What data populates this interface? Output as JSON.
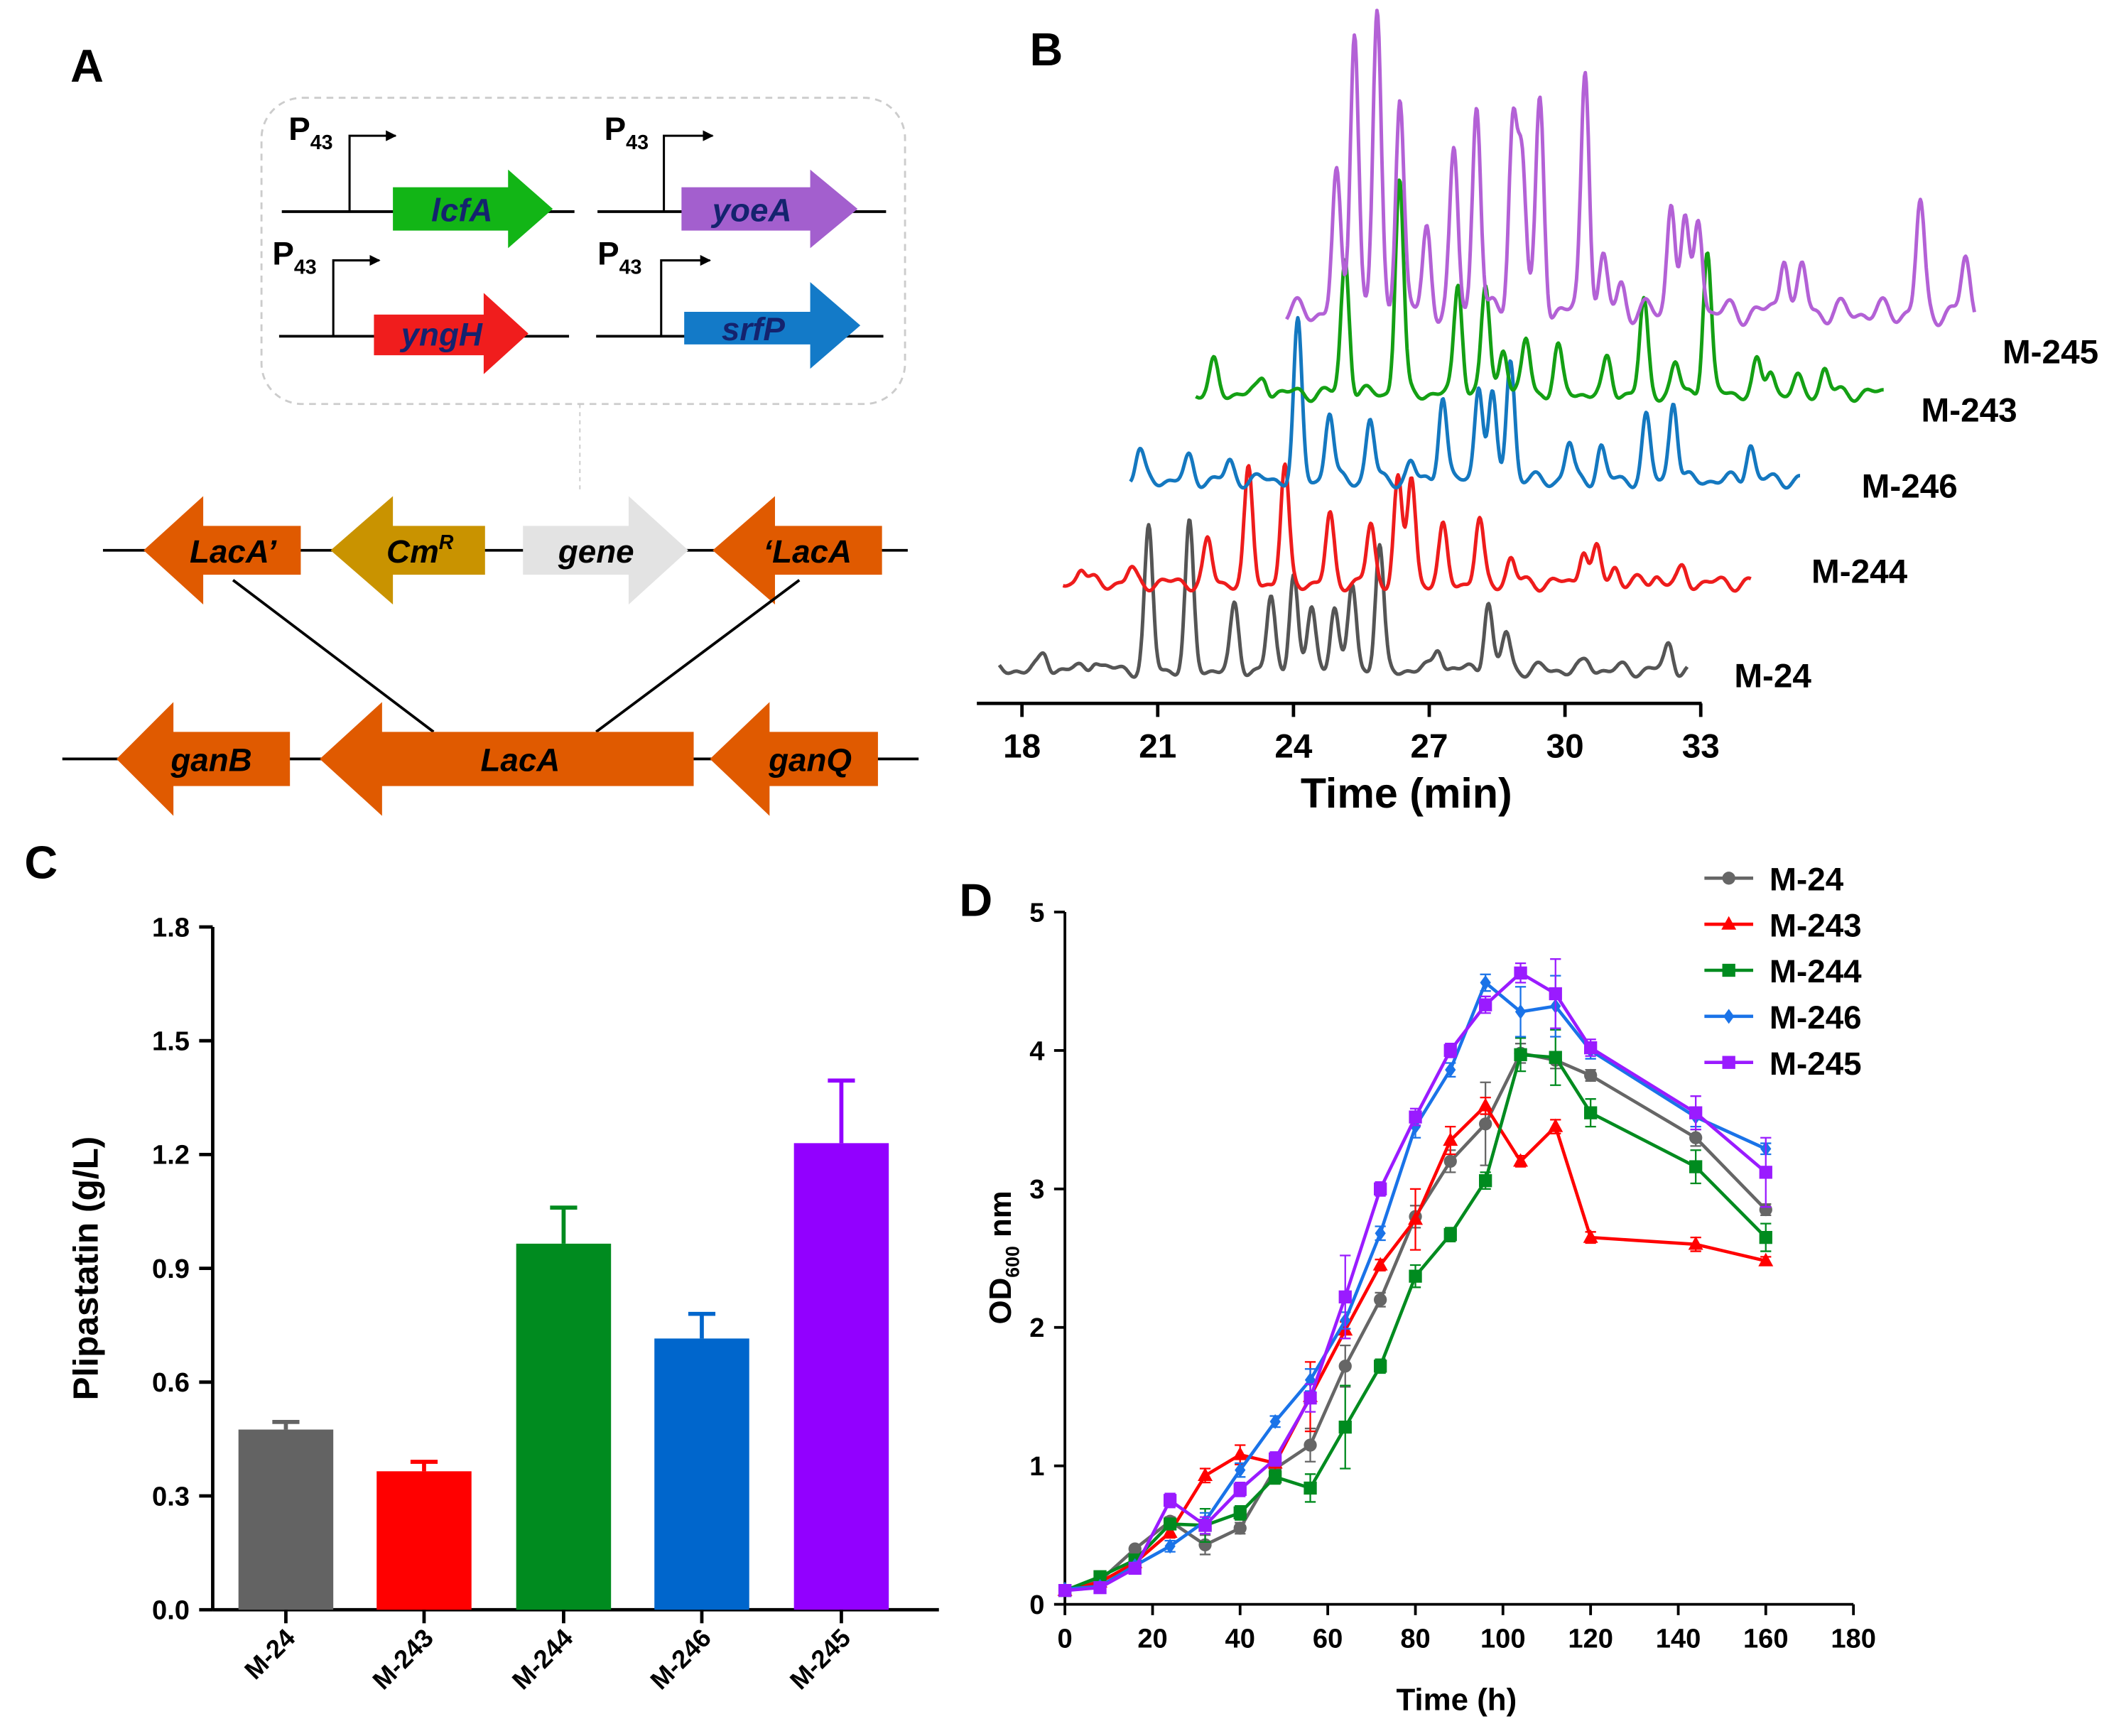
{
  "figure": {
    "panel_labels": {
      "a": "A",
      "b": "B",
      "c": "C",
      "d": "D"
    }
  },
  "panel_a": {
    "promoter": {
      "base": "P",
      "sub": "43"
    },
    "expression_genes": [
      {
        "name": "lcfA",
        "color": "#12b516"
      },
      {
        "name": "yoeA",
        "color": "#a35fce"
      },
      {
        "name": "yngH",
        "color": "#f01d1d"
      },
      {
        "name": "srfP",
        "color": "#137ac8"
      }
    ],
    "cassette": {
      "lacA_left": "LacA’",
      "cm_base": "Cm",
      "cm_sup": "R",
      "gene": "gene",
      "lacA_right": "‘LacA"
    },
    "genome": {
      "ganB": "ganB",
      "lacA": "LacA",
      "ganQ": "ganQ"
    },
    "colors": {
      "orange": "#e05a00",
      "gold": "#c99300",
      "grey": "#e3e3e3",
      "gene_text": "#14236e"
    }
  },
  "chart_data": [
    {
      "id": "chromatogram",
      "type": "line",
      "xlabel": "Time (min)",
      "xlim": [
        17.5,
        33
      ],
      "xticks": [
        18,
        21,
        24,
        27,
        30,
        33
      ],
      "series": [
        {
          "name": "M-24",
          "color": "#555555",
          "x_start": 17.5,
          "x_end": 32.7,
          "peaks": [
            [
              18.5,
              0.4
            ],
            [
              19.6,
              0.3
            ],
            [
              20.8,
              3.4
            ],
            [
              21.7,
              3.5
            ],
            [
              22.7,
              1.5
            ],
            [
              23.5,
              1.7
            ],
            [
              24.0,
              2.4
            ],
            [
              24.4,
              1.5
            ],
            [
              24.9,
              1.6
            ],
            [
              25.3,
              2.1
            ],
            [
              25.9,
              3.0
            ],
            [
              27.2,
              0.6
            ],
            [
              28.3,
              1.7
            ],
            [
              28.7,
              0.9
            ],
            [
              30.5,
              0.2
            ],
            [
              32.3,
              0.6
            ]
          ]
        },
        {
          "name": "M-244",
          "color": "#ee1c1c",
          "x_start": 17.5,
          "x_end": 32.7,
          "peaks": [
            [
              17.9,
              0.4
            ],
            [
              19.0,
              0.3
            ],
            [
              20.7,
              1.0
            ],
            [
              21.6,
              2.7
            ],
            [
              22.4,
              2.8
            ],
            [
              23.4,
              1.6
            ],
            [
              24.3,
              1.4
            ],
            [
              24.9,
              2.5
            ],
            [
              25.2,
              2.6
            ],
            [
              25.9,
              1.3
            ],
            [
              26.7,
              1.5
            ],
            [
              27.4,
              0.6
            ],
            [
              29.0,
              0.9
            ],
            [
              29.3,
              0.8
            ],
            [
              29.7,
              0.4
            ],
            [
              30.6,
              0.2
            ],
            [
              31.2,
              0.3
            ]
          ]
        },
        {
          "name": "M-246",
          "color": "#1478c0",
          "x_start": 17.7,
          "x_end": 32.5,
          "peaks": [
            [
              17.9,
              0.7
            ],
            [
              19.0,
              0.5
            ],
            [
              19.9,
              0.4
            ],
            [
              21.4,
              3.8
            ],
            [
              22.1,
              1.7
            ],
            [
              23.0,
              1.5
            ],
            [
              23.9,
              0.4
            ],
            [
              24.6,
              2.1
            ],
            [
              25.4,
              2.4
            ],
            [
              25.7,
              2.0
            ],
            [
              26.1,
              3.0
            ],
            [
              27.4,
              0.9
            ],
            [
              28.1,
              0.8
            ],
            [
              29.1,
              1.5
            ],
            [
              29.7,
              2.0
            ],
            [
              31.4,
              0.9
            ]
          ]
        },
        {
          "name": "M-243",
          "color": "#14a014",
          "x_start": 17.5,
          "x_end": 32.7,
          "peaks": [
            [
              17.9,
              0.7
            ],
            [
              19.0,
              0.4
            ],
            [
              20.8,
              3.3
            ],
            [
              22.0,
              5.3
            ],
            [
              23.3,
              2.7
            ],
            [
              23.9,
              2.6
            ],
            [
              24.3,
              1.2
            ],
            [
              24.8,
              1.3
            ],
            [
              25.5,
              1.1
            ],
            [
              26.6,
              0.8
            ],
            [
              27.4,
              2.2
            ],
            [
              28.1,
              0.7
            ],
            [
              28.8,
              3.5
            ],
            [
              29.9,
              0.7
            ],
            [
              30.2,
              0.6
            ],
            [
              30.8,
              0.3
            ],
            [
              31.4,
              0.6
            ]
          ]
        },
        {
          "name": "M-245",
          "color": "#b361d6",
          "x_start": 17.5,
          "x_end": 32.7,
          "peaks": [
            [
              18.6,
              1.9
            ],
            [
              19.0,
              4.1
            ],
            [
              19.5,
              4.2
            ],
            [
              20.0,
              3.1
            ],
            [
              20.6,
              1.2
            ],
            [
              21.2,
              2.2
            ],
            [
              21.7,
              3.0
            ],
            [
              22.5,
              2.7
            ],
            [
              22.7,
              2.2
            ],
            [
              23.1,
              3.0
            ],
            [
              24.1,
              3.5
            ],
            [
              24.5,
              0.7
            ],
            [
              24.9,
              0.4
            ],
            [
              26.0,
              1.6
            ],
            [
              26.3,
              1.2
            ],
            [
              26.6,
              1.4
            ],
            [
              28.5,
              0.9
            ],
            [
              28.9,
              0.6
            ],
            [
              31.5,
              1.5
            ],
            [
              32.5,
              0.7
            ]
          ]
        }
      ]
    },
    {
      "id": "plipastatin",
      "type": "bar",
      "title": "",
      "xlabel": "",
      "ylabel": "Plipastatin (g/L)",
      "ylim": [
        0,
        1.8
      ],
      "yticks": [
        "0.0",
        "0.3",
        "0.6",
        "0.9",
        "1.2",
        "1.5",
        "1.8"
      ],
      "categories": [
        "M-24",
        "M-243",
        "M-244",
        "M-246",
        "M-245"
      ],
      "values": [
        0.475,
        0.365,
        0.965,
        0.715,
        1.23
      ],
      "errors": [
        0.02,
        0.025,
        0.095,
        0.065,
        0.165
      ],
      "colors": [
        "#636363",
        "#ff0000",
        "#008b1f",
        "#0066cc",
        "#9200ff"
      ]
    },
    {
      "id": "growth",
      "type": "line",
      "xlabel": "Time (h)",
      "ylabel": {
        "base": "OD",
        "sub": "600",
        "suffix": " nm"
      },
      "xlim": [
        0,
        180
      ],
      "ylim": [
        0,
        5
      ],
      "xticks": [
        "0",
        "20",
        "40",
        "60",
        "80",
        "100",
        "120",
        "140",
        "160",
        "180"
      ],
      "yticks": [
        "0",
        "1",
        "2",
        "3",
        "4",
        "5"
      ],
      "x": [
        0,
        8,
        16,
        24,
        32,
        40,
        48,
        56,
        64,
        72,
        80,
        88,
        96,
        104,
        112,
        120,
        144,
        160
      ],
      "series": [
        {
          "name": "M-24",
          "color": "#666666",
          "marker": "circle",
          "values": [
            0.1,
            0.17,
            0.4,
            0.6,
            0.43,
            0.55,
            0.98,
            1.15,
            1.72,
            2.2,
            2.8,
            3.2,
            3.47,
            3.98,
            3.93,
            3.82,
            3.37,
            2.85
          ],
          "errors": [
            0.01,
            0.02,
            0.02,
            0.03,
            0.07,
            0.04,
            0.05,
            0.12,
            0.15,
            0.05,
            0.08,
            0.08,
            0.3,
            0.07,
            0.06,
            0.04,
            0.06,
            0.04
          ]
        },
        {
          "name": "M-243",
          "color": "#ff0000",
          "marker": "triangle",
          "values": [
            0.1,
            0.16,
            0.3,
            0.52,
            0.93,
            1.08,
            1.02,
            1.5,
            1.98,
            2.45,
            2.78,
            3.35,
            3.6,
            3.2,
            3.45,
            2.65,
            2.6,
            2.48
          ],
          "errors": [
            0.01,
            0.02,
            0.03,
            0.04,
            0.05,
            0.07,
            0.05,
            0.25,
            0.06,
            0.04,
            0.22,
            0.1,
            0.06,
            0.04,
            0.05,
            0.04,
            0.05,
            0.03
          ]
        },
        {
          "name": "M-244",
          "color": "#008b1f",
          "marker": "square",
          "values": [
            0.1,
            0.2,
            0.32,
            0.58,
            0.57,
            0.66,
            0.92,
            0.84,
            1.28,
            1.72,
            2.37,
            2.67,
            3.06,
            3.97,
            3.95,
            3.55,
            3.16,
            2.65
          ],
          "errors": [
            0.01,
            0.02,
            0.03,
            0.04,
            0.12,
            0.05,
            0.05,
            0.1,
            0.3,
            0.05,
            0.08,
            0.05,
            0.06,
            0.12,
            0.2,
            0.1,
            0.12,
            0.1
          ]
        },
        {
          "name": "M-246",
          "color": "#1a73e8",
          "marker": "diamond",
          "values": [
            0.11,
            0.13,
            0.28,
            0.42,
            0.6,
            0.97,
            1.32,
            1.62,
            2.05,
            2.68,
            3.45,
            3.86,
            4.49,
            4.28,
            4.32,
            4.0,
            3.52,
            3.29
          ],
          "errors": [
            0.01,
            0.02,
            0.02,
            0.04,
            0.06,
            0.05,
            0.04,
            0.08,
            0.06,
            0.05,
            0.08,
            0.05,
            0.06,
            0.18,
            0.22,
            0.06,
            0.07,
            0.04
          ]
        },
        {
          "name": "M-245",
          "color": "#9a1bff",
          "marker": "square",
          "values": [
            0.1,
            0.12,
            0.26,
            0.75,
            0.57,
            0.83,
            1.05,
            1.49,
            2.22,
            3.0,
            3.52,
            4.0,
            4.33,
            4.56,
            4.41,
            4.02,
            3.55,
            3.12
          ],
          "errors": [
            0.01,
            0.02,
            0.02,
            0.05,
            0.06,
            0.05,
            0.05,
            0.1,
            0.3,
            0.05,
            0.06,
            0.05,
            0.06,
            0.07,
            0.25,
            0.06,
            0.12,
            0.25
          ]
        }
      ]
    }
  ]
}
